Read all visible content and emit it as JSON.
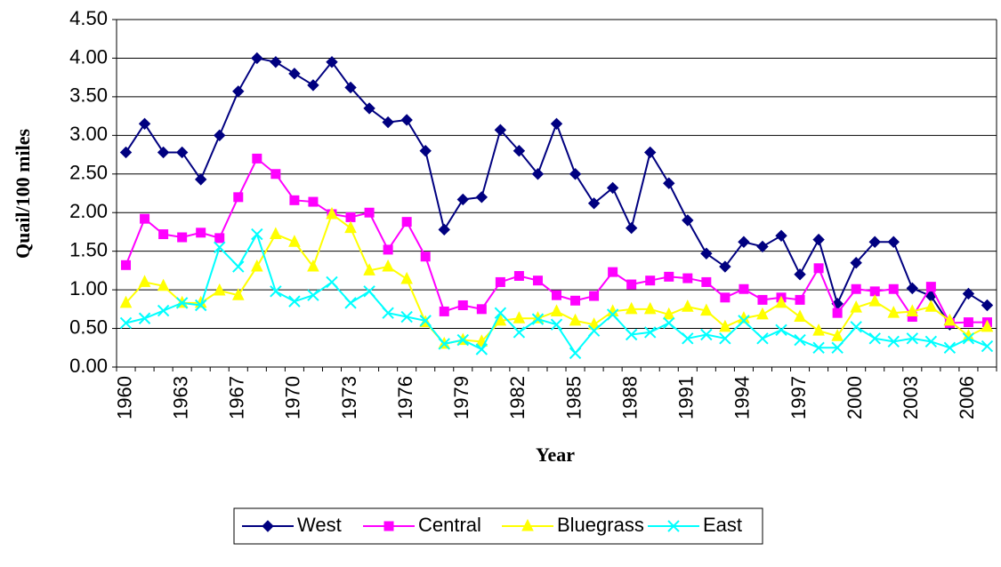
{
  "chart_data": {
    "type": "line",
    "x_label": "Year",
    "y_label": "Quail/100 miles",
    "categories": [
      "1960",
      null,
      null,
      "1963",
      null,
      null,
      "1967",
      null,
      null,
      "1970",
      null,
      null,
      "1973",
      null,
      null,
      "1976",
      null,
      null,
      "1979",
      null,
      null,
      "1982",
      null,
      null,
      "1985",
      null,
      null,
      "1988",
      null,
      null,
      "1991",
      null,
      null,
      "1994",
      null,
      null,
      "1997",
      null,
      null,
      "2000",
      null,
      null,
      "2003",
      null,
      null,
      "2006",
      null
    ],
    "series": [
      {
        "name": "West",
        "color": "#000080",
        "marker": "diamond",
        "values": [
          2.78,
          3.15,
          2.78,
          2.78,
          2.43,
          3.0,
          3.57,
          4.0,
          3.95,
          3.8,
          3.65,
          3.95,
          3.62,
          3.35,
          3.17,
          3.2,
          2.8,
          1.78,
          2.17,
          2.2,
          3.07,
          2.8,
          2.5,
          3.15,
          2.5,
          2.12,
          2.32,
          1.8,
          2.78,
          2.38,
          1.9,
          1.47,
          1.3,
          1.62,
          1.56,
          1.7,
          1.2,
          1.65,
          0.82,
          1.35,
          1.62,
          1.62,
          1.02,
          0.92,
          0.55,
          0.95,
          0.8
        ]
      },
      {
        "name": "Central",
        "color": "#FF00FF",
        "marker": "square",
        "values": [
          1.32,
          1.92,
          1.72,
          1.68,
          1.74,
          1.67,
          2.2,
          2.7,
          2.5,
          2.16,
          2.14,
          1.98,
          1.94,
          2.0,
          1.52,
          1.88,
          1.43,
          0.72,
          0.8,
          0.75,
          1.1,
          1.18,
          1.12,
          0.93,
          0.86,
          0.92,
          1.23,
          1.07,
          1.12,
          1.17,
          1.15,
          1.1,
          0.9,
          1.01,
          0.87,
          0.9,
          0.87,
          1.28,
          0.7,
          1.01,
          0.98,
          1.01,
          0.65,
          1.04,
          0.57,
          0.58,
          0.58
        ]
      },
      {
        "name": "Bluegrass",
        "color": "#FFFF00",
        "marker": "triangle",
        "values": [
          0.83,
          1.1,
          1.05,
          0.83,
          0.83,
          0.99,
          0.93,
          1.3,
          1.72,
          1.62,
          1.3,
          1.98,
          1.8,
          1.25,
          1.3,
          1.14,
          0.58,
          0.3,
          0.35,
          0.33,
          0.6,
          0.63,
          0.63,
          0.72,
          0.6,
          0.55,
          0.72,
          0.75,
          0.75,
          0.68,
          0.78,
          0.73,
          0.52,
          0.63,
          0.68,
          0.83,
          0.65,
          0.47,
          0.4,
          0.77,
          0.85,
          0.7,
          0.72,
          0.78,
          0.6,
          0.4,
          0.52
        ]
      },
      {
        "name": "East",
        "color": "#00FFFF",
        "marker": "x",
        "values": [
          0.57,
          0.63,
          0.73,
          0.83,
          0.8,
          1.55,
          1.3,
          1.72,
          0.98,
          0.85,
          0.93,
          1.1,
          0.83,
          0.98,
          0.7,
          0.65,
          0.6,
          0.3,
          0.35,
          0.23,
          0.7,
          0.45,
          0.62,
          0.55,
          0.18,
          0.47,
          0.68,
          0.42,
          0.45,
          0.57,
          0.37,
          0.42,
          0.37,
          0.6,
          0.37,
          0.48,
          0.35,
          0.25,
          0.25,
          0.52,
          0.37,
          0.33,
          0.37,
          0.33,
          0.25,
          0.37,
          0.27
        ]
      }
    ],
    "ylim": [
      0,
      4.5
    ],
    "yticks": [
      {
        "value": 0,
        "label": "0.00"
      },
      {
        "value": 0.5,
        "label": "0.50"
      },
      {
        "value": 1,
        "label": "1.00"
      },
      {
        "value": 1.5,
        "label": "1.50"
      },
      {
        "value": 2,
        "label": "2.00"
      },
      {
        "value": 2.5,
        "label": "2.50"
      },
      {
        "value": 3,
        "label": "3.00"
      },
      {
        "value": 3.5,
        "label": "3.50"
      },
      {
        "value": 4,
        "label": "4.00"
      },
      {
        "value": 4.5,
        "label": "4.50"
      }
    ],
    "grid": true,
    "legend": "bottom"
  }
}
